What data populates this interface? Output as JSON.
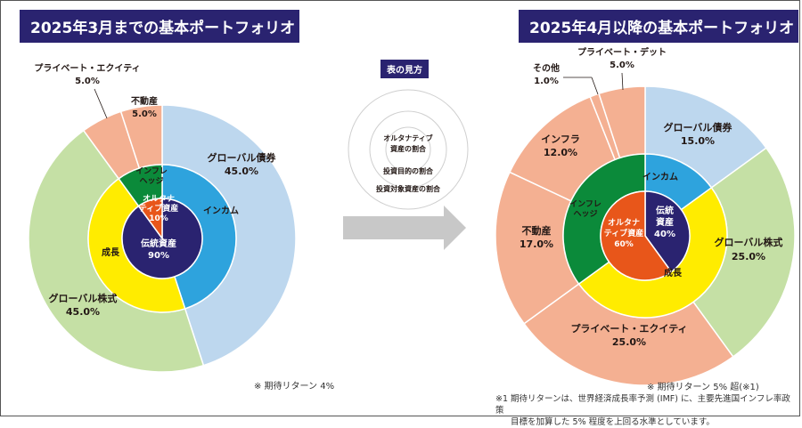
{
  "titles": {
    "left": "2025年3月までの基本ポートフォリオ",
    "right": "2025年4月以降の基本ポートフォリオ"
  },
  "legend": {
    "title": "表の見方",
    "inner": "オルタナティブ資産の割合",
    "inner_line1": "オルタナティブ",
    "inner_line2": "資産の割合",
    "middle": "投資目的の割合",
    "outer": "投資対象資産の割合"
  },
  "notes": {
    "left": "※ 期待リターン 4%",
    "right": "※ 期待リターン 5% 超(※1)",
    "footnote_line1": "※1 期待リターンは、世界経済成長率予測 (IMF) に、主要先進国インフレ率政策",
    "footnote_line2": "目標を加算した 5% 程度を上回る水準としています。"
  },
  "colors": {
    "title_bg": "#2a2370",
    "global_bond": "#bdd7ee",
    "global_equity": "#c5e0a5",
    "alternative_outer": "#f4b092",
    "income": "#2ea3dd",
    "growth": "#ffec00",
    "inflation_hedge": "#0b8a3a",
    "traditional": "#2a2370",
    "alternative_inner": "#e8561a",
    "arrow": "#c8c8c8"
  },
  "chart_data": [
    {
      "type": "pie",
      "subtype": "sunburst",
      "title": "2025年3月までの基本ポートフォリオ",
      "outer_ring": [
        {
          "name": "グローバル債券",
          "value": 45.0,
          "label": "45.0%",
          "color": "#bdd7ee"
        },
        {
          "name": "グローバル株式",
          "value": 45.0,
          "label": "45.0%",
          "color": "#c5e0a5"
        },
        {
          "name": "プライベート・エクイティ",
          "value": 5.0,
          "label": "5.0%",
          "color": "#f4b092"
        },
        {
          "name": "不動産",
          "value": 5.0,
          "label": "5.0%",
          "color": "#f4b092"
        }
      ],
      "middle_ring": [
        {
          "name": "インカム",
          "value": 45,
          "color": "#2ea3dd"
        },
        {
          "name": "成長",
          "value": 45,
          "color": "#ffec00"
        },
        {
          "name": "インフレヘッジ",
          "line1": "インフレ",
          "line2": "ヘッジ",
          "value": 10,
          "color": "#0b8a3a"
        }
      ],
      "inner_ring": [
        {
          "name": "伝統資産",
          "line1": "伝統資産",
          "line2": "90%",
          "value": 90,
          "color": "#2a2370"
        },
        {
          "name": "オルタナティブ資産",
          "line1": "オルタナ",
          "line2": "ティブ資産",
          "line3": "10%",
          "value": 10,
          "color": "#e8561a"
        }
      ],
      "note": "※ 期待リターン 4%"
    },
    {
      "type": "pie",
      "subtype": "sunburst",
      "title": "2025年4月以降の基本ポートフォリオ",
      "outer_ring": [
        {
          "name": "グローバル債券",
          "value": 15.0,
          "label": "15.0%",
          "color": "#bdd7ee"
        },
        {
          "name": "グローバル株式",
          "value": 25.0,
          "label": "25.0%",
          "color": "#c5e0a5"
        },
        {
          "name": "プライベート・エクイティ",
          "value": 25.0,
          "label": "25.0%",
          "color": "#f4b092"
        },
        {
          "name": "不動産",
          "value": 17.0,
          "label": "17.0%",
          "color": "#f4b092"
        },
        {
          "name": "インフラ",
          "value": 12.0,
          "label": "12.0%",
          "color": "#f4b092"
        },
        {
          "name": "その他",
          "value": 1.0,
          "label": "1.0%",
          "color": "#f4b092"
        },
        {
          "name": "プライベート・デット",
          "value": 5.0,
          "label": "5.0%",
          "color": "#f4b092"
        }
      ],
      "middle_ring": [
        {
          "name": "インカム",
          "value": 15,
          "color": "#2ea3dd"
        },
        {
          "name": "成長",
          "value": 50,
          "color": "#ffec00"
        },
        {
          "name": "インフレヘッジ",
          "line1": "インフレ",
          "line2": "ヘッジ",
          "value": 35,
          "color": "#0b8a3a"
        }
      ],
      "inner_ring": [
        {
          "name": "伝統資産",
          "line1": "伝統",
          "line2": "資産",
          "line3": "40%",
          "value": 40,
          "color": "#2a2370"
        },
        {
          "name": "オルタナティブ資産",
          "line1": "オルタナ",
          "line2": "ティブ資産",
          "line3": "60%",
          "value": 60,
          "color": "#e8561a"
        }
      ],
      "note": "※ 期待リターン 5% 超(※1)"
    }
  ]
}
